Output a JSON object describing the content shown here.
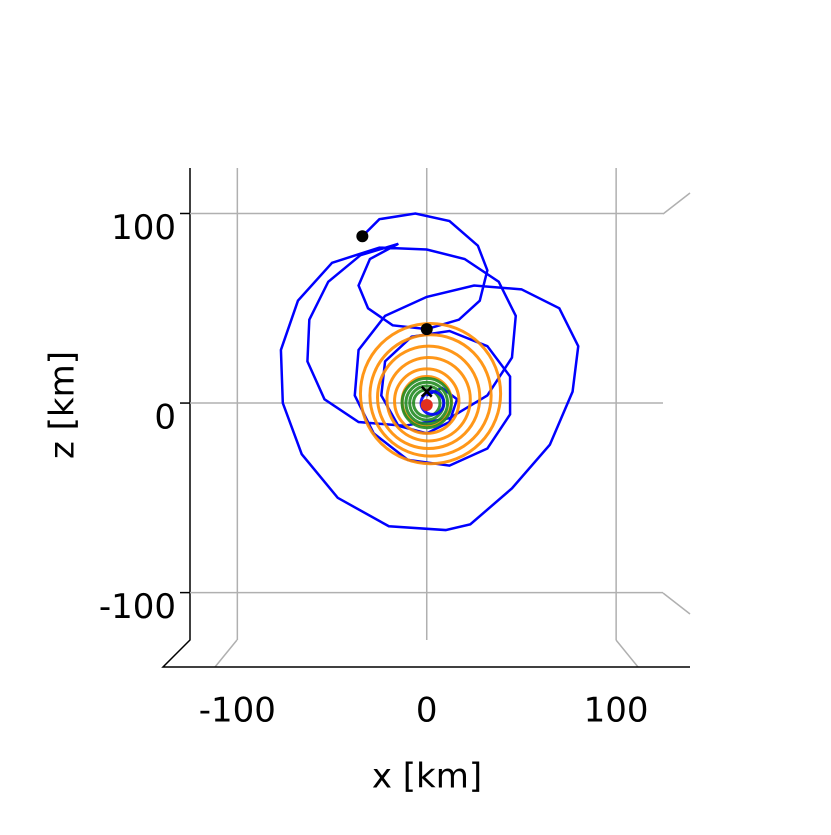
{
  "chart_data": {
    "type": "trajectory3d",
    "xlabel": "x [km]",
    "ylabel": "z [km]",
    "xlim": [
      -125,
      139
    ],
    "ylim": [
      -125,
      124
    ],
    "xticks": [
      -100,
      0,
      100
    ],
    "yticks": [
      -100,
      0,
      100
    ],
    "grid": true,
    "series": [
      {
        "color": "#0000ff",
        "x": [
          -34,
          -25,
          -6,
          12,
          27,
          32,
          28,
          17,
          0,
          -18,
          -31,
          -36,
          -30,
          -15,
          -35,
          -52,
          -62,
          -63,
          -54,
          -36,
          -12,
          12,
          32,
          45,
          47,
          38,
          20,
          0,
          -25,
          -50,
          -68,
          -77,
          -76,
          -66,
          -47,
          -20,
          10,
          23,
          45,
          65,
          77,
          80,
          70,
          50,
          25,
          0,
          -22,
          -36,
          -38,
          -28,
          -10,
          12,
          32,
          44,
          44,
          32,
          12,
          -8,
          -22,
          -24,
          -15,
          0,
          12,
          16,
          8,
          0
        ],
        "y": [
          88,
          97,
          100,
          96,
          83,
          70,
          54,
          44,
          39,
          41,
          50,
          62,
          76,
          84,
          78,
          64,
          44,
          22,
          2,
          -10,
          -12,
          -8,
          4,
          24,
          46,
          64,
          76,
          81,
          82,
          74,
          54,
          28,
          0,
          -27,
          -50,
          -65,
          -67,
          -64,
          -45,
          -22,
          6,
          30,
          50,
          60,
          62,
          56,
          46,
          28,
          4,
          -16,
          -30,
          -33,
          -24,
          -6,
          14,
          30,
          38,
          35,
          22,
          4,
          -12,
          -16,
          -10,
          2,
          8,
          4
        ]
      },
      {
        "color": "#ff8c00",
        "rings": [
          [
            2,
            5,
            37
          ],
          [
            2,
            4,
            32
          ],
          [
            1,
            3,
            27
          ],
          [
            1,
            2,
            22
          ],
          [
            0,
            1,
            17
          ],
          [
            0,
            1,
            13
          ]
        ]
      },
      {
        "color": "#228b22",
        "rings": [
          [
            0,
            0,
            13
          ],
          [
            0,
            0,
            11
          ],
          [
            0,
            0,
            9
          ],
          [
            0,
            0,
            7
          ]
        ]
      },
      {
        "color": "#0000ff",
        "rings": [
          [
            3,
            0,
            6
          ]
        ]
      }
    ],
    "points": [
      {
        "x": -34,
        "y": 88,
        "color": "#000000",
        "marker": "dot"
      },
      {
        "x": 0,
        "y": 39,
        "color": "#000000",
        "marker": "dot"
      },
      {
        "x": 0,
        "y": -1,
        "color": "#e03020",
        "marker": "dot"
      },
      {
        "x": 0,
        "y": 6,
        "color": "#000000",
        "marker": "x"
      }
    ]
  }
}
